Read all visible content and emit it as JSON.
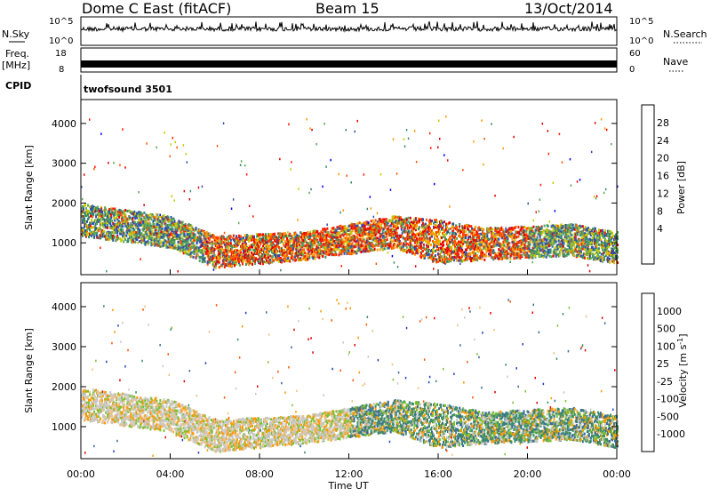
{
  "header": {
    "title": "Dome C East (fitACF)",
    "beam": "Beam 15",
    "date": "13/Oct/2014"
  },
  "top_panels": {
    "nsky_label": "N.Sky",
    "nsky_ticks": [
      "10^5",
      "10^0"
    ],
    "nsearch_label": "N.Search",
    "nsearch_ticks": [
      "10^5",
      "10^0"
    ],
    "freq_label": "Freq.",
    "freq_unit": "[MHz]",
    "freq_ticks": [
      "18",
      "8"
    ],
    "nave_label": "Nave",
    "nave_ticks": [
      "60",
      "0"
    ],
    "cpid_label": "CPID",
    "cpid_value": "twofsound 3501"
  },
  "chart_data": [
    {
      "type": "heatmap",
      "name": "power",
      "ylabel": "Slant Range [km]",
      "ylim": [
        200,
        4600
      ],
      "yticks": [
        "4000",
        "3000",
        "2000",
        "1000"
      ],
      "xlim": [
        0,
        24
      ],
      "colorbar": {
        "label": "Power [dB]",
        "ticks": [
          "28",
          "24",
          "20",
          "16",
          "12",
          "8",
          "4"
        ],
        "colors": [
          "#0000ff",
          "#2b4fb4",
          "#3a8a6c",
          "#5aa85a",
          "#c8c800",
          "#ff9900",
          "#ff5500",
          "#ff1a00",
          "#e00000"
        ]
      },
      "scatter_band": [
        {
          "t": 0,
          "low": 1200,
          "high": 2000
        },
        {
          "t": 4,
          "low": 900,
          "high": 1700
        },
        {
          "t": 6,
          "low": 400,
          "high": 1200
        },
        {
          "t": 10,
          "low": 600,
          "high": 1300
        },
        {
          "t": 14,
          "low": 900,
          "high": 1700
        },
        {
          "t": 16,
          "low": 500,
          "high": 1600
        },
        {
          "t": 18,
          "low": 600,
          "high": 1400
        },
        {
          "t": 22,
          "low": 700,
          "high": 1500
        },
        {
          "t": 24,
          "low": 500,
          "high": 1300
        }
      ]
    },
    {
      "type": "heatmap",
      "name": "velocity",
      "ylabel": "Slant Range [km]",
      "ylim": [
        200,
        4600
      ],
      "yticks": [
        "4000",
        "3000",
        "2000",
        "1000"
      ],
      "xlim": [
        0,
        24
      ],
      "xticks": [
        "00:00",
        "04:00",
        "08:00",
        "12:00",
        "16:00",
        "20:00",
        "00:00"
      ],
      "xlabel": "Time UT",
      "colorbar": {
        "label": "Velocity [m s",
        "label_sup": "-1",
        "label_end": "]",
        "ticks": [
          "1000",
          "500",
          "100",
          "25",
          "-25",
          "-100",
          "-500",
          "-1000"
        ],
        "colors": [
          "#2040c0",
          "#3a6a9a",
          "#3a8a6c",
          "#7ac030",
          "#c8c8c8",
          "#f0c080",
          "#ff9900",
          "#ff5500",
          "#e00000"
        ]
      }
    }
  ]
}
